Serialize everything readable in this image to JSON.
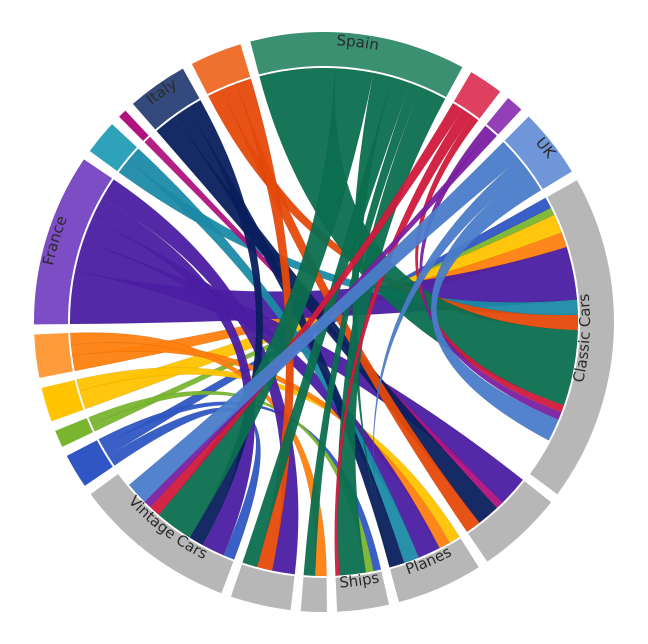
{
  "chart_data": {
    "type": "chord",
    "title": "",
    "groups": [
      {
        "name": "Vintage Cars",
        "color": "#b7b7b7",
        "outer": "#b7b7b7",
        "label": "Vintage Cars",
        "value": 19
      },
      {
        "name": "",
        "color": "#2f56c4",
        "outer": "#2f56c4",
        "label": "",
        "value": 4
      },
      {
        "name": "",
        "color": "#7ab530",
        "outer": "#7ab530",
        "label": "",
        "value": 2
      },
      {
        "name": "",
        "color": "#ffc300",
        "outer": "#ffc300",
        "label": "",
        "value": 4
      },
      {
        "name": "",
        "color": "#ff7f0e",
        "outer": "#ff9b3a",
        "label": "",
        "value": 5
      },
      {
        "name": "France",
        "color": "#4b1ea3",
        "outer": "#7c4dc4",
        "label": "France",
        "value": 20
      },
      {
        "name": "",
        "color": "#1b8aa5",
        "outer": "#2ea2b8",
        "label": "",
        "value": 4
      },
      {
        "name": "",
        "color": "#b0137e",
        "outer": "#b0137e",
        "label": "",
        "value": 1
      },
      {
        "name": "Italy",
        "color": "#0a1f5e",
        "outer": "#354a7c",
        "label": "Italy",
        "value": 7
      },
      {
        "name": "",
        "color": "#e64a0a",
        "outer": "#f07030",
        "label": "",
        "value": 6
      },
      {
        "name": "Spain",
        "color": "#0b6e4f",
        "outer": "#3a9070",
        "label": "Spain",
        "value": 25
      },
      {
        "name": "",
        "color": "#d11a3c",
        "outer": "#e04060",
        "label": "",
        "value": 4
      },
      {
        "name": "",
        "color": "#7b1fa2",
        "outer": "#9340b8",
        "label": "",
        "value": 2
      },
      {
        "name": "UK",
        "color": "#4a7cc9",
        "outer": "#6e96d8",
        "label": "UK",
        "value": 8
      },
      {
        "name": "Classic Cars",
        "color": "#b7b7b7",
        "outer": "#b7b7b7",
        "label": "Classic Cars",
        "value": 38
      },
      {
        "name": "",
        "color": "#b7b7b7",
        "outer": "#b7b7b7",
        "label": "",
        "value": 10
      },
      {
        "name": "Planes",
        "color": "#b7b7b7",
        "outer": "#b7b7b7",
        "label": "Planes",
        "value": 10
      },
      {
        "name": "Ships",
        "color": "#b7b7b7",
        "outer": "#b7b7b7",
        "label": "Ships",
        "value": 6
      },
      {
        "name": "",
        "color": "#b7b7b7",
        "outer": "#b7b7b7",
        "label": "",
        "value": 3
      },
      {
        "name": "",
        "color": "#b7b7b7",
        "outer": "#b7b7b7",
        "label": "",
        "value": 7
      }
    ],
    "ribbons": [
      {
        "source": 1,
        "target": 0,
        "value": 1.5
      },
      {
        "source": 1,
        "target": 14,
        "value": 1.5
      },
      {
        "source": 1,
        "target": 17,
        "value": 1.0
      },
      {
        "source": 2,
        "target": 14,
        "value": 1.0
      },
      {
        "source": 2,
        "target": 17,
        "value": 1.0
      },
      {
        "source": 3,
        "target": 14,
        "value": 2.5
      },
      {
        "source": 3,
        "target": 16,
        "value": 1.5
      },
      {
        "source": 4,
        "target": 14,
        "value": 2.0
      },
      {
        "source": 4,
        "target": 16,
        "value": 1.5
      },
      {
        "source": 4,
        "target": 18,
        "value": 1.5
      },
      {
        "source": 5,
        "target": 14,
        "value": 7.0
      },
      {
        "source": 5,
        "target": 15,
        "value": 4.0
      },
      {
        "source": 5,
        "target": 16,
        "value": 3.0
      },
      {
        "source": 5,
        "target": 0,
        "value": 3.0
      },
      {
        "source": 5,
        "target": 19,
        "value": 3.0
      },
      {
        "source": 6,
        "target": 14,
        "value": 2.0
      },
      {
        "source": 6,
        "target": 16,
        "value": 2.0
      },
      {
        "source": 7,
        "target": 15,
        "value": 1.0
      },
      {
        "source": 8,
        "target": 15,
        "value": 3.0
      },
      {
        "source": 8,
        "target": 16,
        "value": 2.0
      },
      {
        "source": 8,
        "target": 0,
        "value": 2.0
      },
      {
        "source": 9,
        "target": 14,
        "value": 2.0
      },
      {
        "source": 9,
        "target": 15,
        "value": 2.0
      },
      {
        "source": 9,
        "target": 19,
        "value": 2.0
      },
      {
        "source": 10,
        "target": 14,
        "value": 10.0
      },
      {
        "source": 10,
        "target": 0,
        "value": 5.0
      },
      {
        "source": 10,
        "target": 16,
        "value": 2.5
      },
      {
        "source": 10,
        "target": 19,
        "value": 2.5
      },
      {
        "source": 10,
        "target": 18,
        "value": 1.5
      },
      {
        "source": 10,
        "target": 17,
        "value": 3.5
      },
      {
        "source": 11,
        "target": 0,
        "value": 1.5
      },
      {
        "source": 11,
        "target": 17,
        "value": 1.5
      },
      {
        "source": 11,
        "target": 14,
        "value": 1.0
      },
      {
        "source": 12,
        "target": 14,
        "value": 1.0
      },
      {
        "source": 12,
        "target": 0,
        "value": 1.0
      },
      {
        "source": 13,
        "target": 0,
        "value": 3.0
      },
      {
        "source": 13,
        "target": 16,
        "value": 2.0
      },
      {
        "source": 13,
        "target": 14,
        "value": 3.0
      }
    ]
  }
}
